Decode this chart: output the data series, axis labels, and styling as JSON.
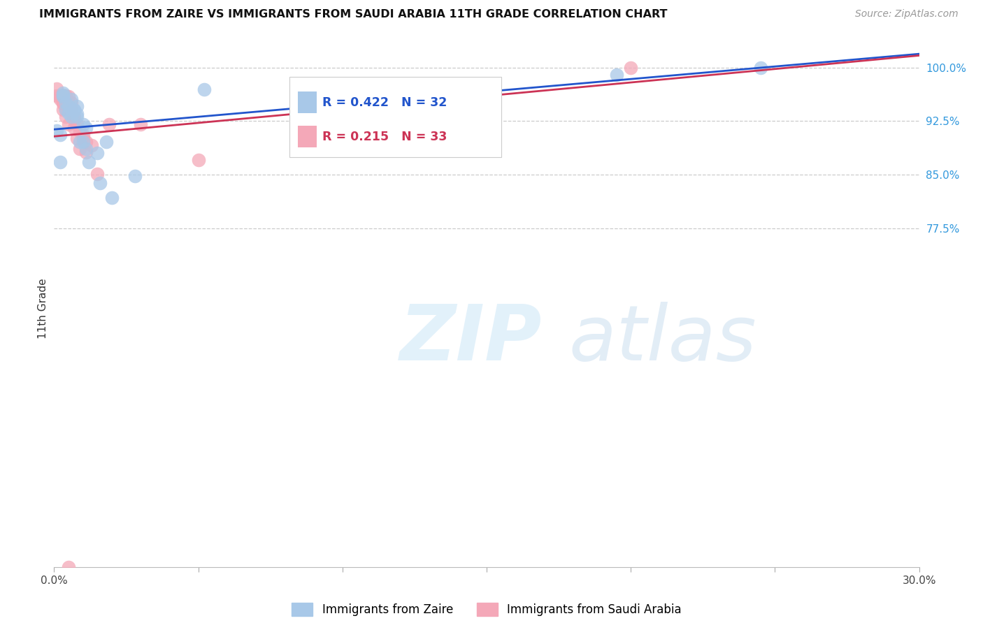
{
  "title": "IMMIGRANTS FROM ZAIRE VS IMMIGRANTS FROM SAUDI ARABIA 11TH GRADE CORRELATION CHART",
  "source": "Source: ZipAtlas.com",
  "ylabel": "11th Grade",
  "xmin": 0.0,
  "xmax": 0.3,
  "ymin": 0.3,
  "ymax": 1.025,
  "yticks": [
    0.775,
    0.85,
    0.925,
    1.0
  ],
  "ytick_labels": [
    "77.5%",
    "85.0%",
    "92.5%",
    "100.0%"
  ],
  "xticks": [
    0.0,
    0.05,
    0.1,
    0.15,
    0.2,
    0.25,
    0.3
  ],
  "xtick_labels": [
    "0.0%",
    "",
    "",
    "",
    "",
    "",
    "30.0%"
  ],
  "zaire_color": "#a8c8e8",
  "saudi_color": "#f4a8b8",
  "zaire_line_color": "#2255cc",
  "saudi_line_color": "#cc3355",
  "zaire_R": 0.422,
  "zaire_N": 32,
  "saudi_R": 0.215,
  "saudi_N": 33,
  "zaire_x": [
    0.001,
    0.002,
    0.002,
    0.003,
    0.003,
    0.003,
    0.004,
    0.004,
    0.005,
    0.005,
    0.006,
    0.006,
    0.007,
    0.007,
    0.008,
    0.008,
    0.008,
    0.009,
    0.01,
    0.01,
    0.011,
    0.011,
    0.012,
    0.015,
    0.016,
    0.018,
    0.02,
    0.028,
    0.052,
    0.085,
    0.195,
    0.245
  ],
  "zaire_y": [
    0.912,
    0.906,
    0.868,
    0.96,
    0.962,
    0.965,
    0.951,
    0.941,
    0.946,
    0.936,
    0.956,
    0.931,
    0.941,
    0.94,
    0.946,
    0.935,
    0.931,
    0.896,
    0.896,
    0.921,
    0.916,
    0.886,
    0.868,
    0.88,
    0.838,
    0.896,
    0.818,
    0.848,
    0.97,
    0.97,
    0.99,
    1.0
  ],
  "saudi_x": [
    0.001,
    0.001,
    0.002,
    0.002,
    0.003,
    0.003,
    0.003,
    0.004,
    0.004,
    0.004,
    0.005,
    0.005,
    0.005,
    0.006,
    0.006,
    0.006,
    0.007,
    0.007,
    0.007,
    0.008,
    0.008,
    0.009,
    0.009,
    0.01,
    0.01,
    0.011,
    0.011,
    0.013,
    0.015,
    0.019,
    0.03,
    0.05,
    0.2
  ],
  "saudi_y": [
    0.961,
    0.971,
    0.956,
    0.961,
    0.951,
    0.95,
    0.941,
    0.941,
    0.931,
    0.961,
    0.946,
    0.921,
    0.96,
    0.951,
    0.936,
    0.941,
    0.931,
    0.926,
    0.916,
    0.921,
    0.901,
    0.886,
    0.911,
    0.906,
    0.901,
    0.896,
    0.881,
    0.891,
    0.851,
    0.921,
    0.921,
    0.871,
    1.0
  ],
  "saudi_outlier_x": [
    0.005
  ],
  "saudi_outlier_y": [
    0.3
  ]
}
